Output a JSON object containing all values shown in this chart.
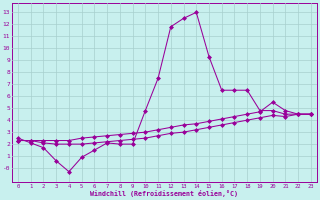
{
  "xlabel": "Windchill (Refroidissement éolien,°C)",
  "xlim": [
    -0.5,
    23.5
  ],
  "ylim": [
    -1.2,
    13.8
  ],
  "ytick_vals": [
    0,
    1,
    2,
    3,
    4,
    5,
    6,
    7,
    8,
    9,
    10,
    11,
    12,
    13
  ],
  "ytick_labels": [
    "-0",
    "1",
    "2",
    "3",
    "4",
    "5",
    "6",
    "7",
    "8",
    "9",
    "10",
    "11",
    "12",
    "13"
  ],
  "xtick_vals": [
    0,
    1,
    2,
    3,
    4,
    5,
    6,
    7,
    8,
    9,
    10,
    11,
    12,
    13,
    14,
    15,
    16,
    17,
    18,
    19,
    20,
    21,
    22,
    23
  ],
  "bg_color": "#c8f0ee",
  "grid_color": "#a8d0ce",
  "line_color": "#990099",
  "line1_x": [
    0,
    1,
    2,
    3,
    4,
    5,
    6,
    7,
    8,
    9,
    10,
    11,
    12,
    13,
    14,
    15,
    16,
    17,
    18,
    19,
    20,
    21,
    22,
    23
  ],
  "line1_y": [
    2.5,
    2.1,
    1.7,
    0.6,
    -0.3,
    0.9,
    1.5,
    2.1,
    2.0,
    2.0,
    4.8,
    7.5,
    11.8,
    12.5,
    13.0,
    9.3,
    6.5,
    6.5,
    6.5,
    4.8,
    4.8,
    4.5,
    4.5,
    4.5
  ],
  "line2_x": [
    0,
    1,
    2,
    3,
    4,
    5,
    6,
    7,
    8,
    9,
    10,
    11,
    12,
    13,
    14,
    15,
    16,
    17,
    18,
    19,
    20,
    21,
    22,
    23
  ],
  "line2_y": [
    2.3,
    2.3,
    2.3,
    2.3,
    2.3,
    2.5,
    2.6,
    2.7,
    2.8,
    2.9,
    3.0,
    3.2,
    3.4,
    3.6,
    3.7,
    3.9,
    4.1,
    4.3,
    4.5,
    4.7,
    5.5,
    4.8,
    4.5,
    4.5
  ],
  "line3_x": [
    0,
    1,
    2,
    3,
    4,
    5,
    6,
    7,
    8,
    9,
    10,
    11,
    12,
    13,
    14,
    15,
    16,
    17,
    18,
    19,
    20,
    21,
    22,
    23
  ],
  "line3_y": [
    2.3,
    2.3,
    2.1,
    2.0,
    2.0,
    2.0,
    2.1,
    2.2,
    2.3,
    2.4,
    2.5,
    2.7,
    2.9,
    3.0,
    3.2,
    3.4,
    3.6,
    3.8,
    4.0,
    4.2,
    4.4,
    4.3,
    4.5,
    4.5
  ]
}
